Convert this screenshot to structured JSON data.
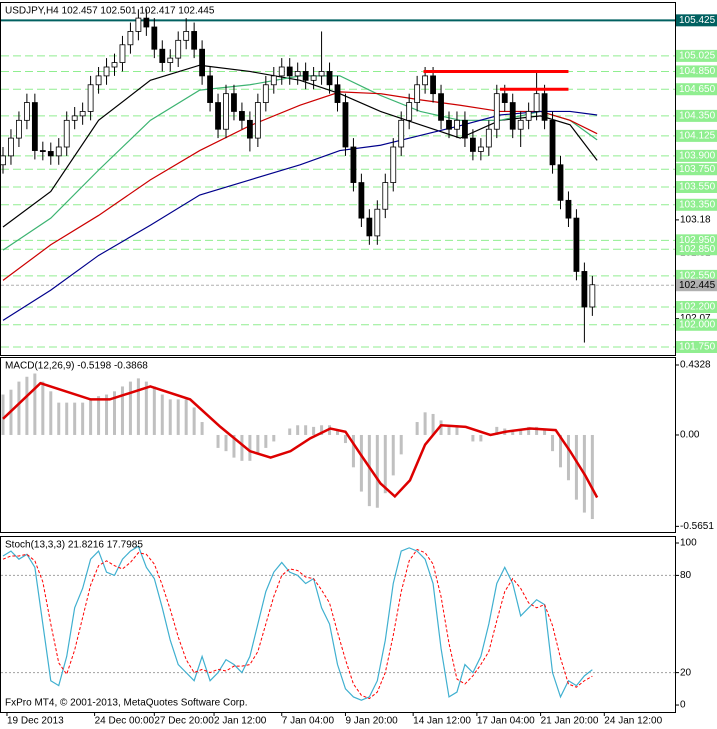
{
  "chart_data": [
    {
      "type": "candlestick",
      "title": "USDJPY,H4 102.457 102.501 102.417 102.445",
      "xlim": [
        0,
        84
      ],
      "ylim": [
        101.66,
        105.62
      ],
      "yticks": [
        103.18,
        102.81,
        102.07
      ],
      "up_color": "#ffffff",
      "down_color": "#000000",
      "open": [
        103.8,
        103.9,
        104.1,
        104.3,
        104.5,
        103.96,
        103.95,
        103.9,
        104.0,
        104.3,
        104.35,
        104.4,
        104.7,
        104.8,
        104.9,
        104.95,
        105.15,
        105.3,
        105.45,
        105.35,
        105.1,
        104.95,
        105.0,
        105.2,
        105.3,
        105.1,
        104.8,
        104.5,
        104.2,
        104.6,
        104.4,
        104.3,
        104.1,
        104.5,
        104.7,
        104.8,
        104.9,
        104.8,
        104.85,
        104.75,
        104.8,
        104.85,
        104.7,
        104.5,
        104.0,
        103.6,
        103.2,
        103.0,
        103.3,
        103.6,
        104.0,
        104.3,
        104.5,
        104.7,
        104.8,
        104.6,
        104.3,
        104.2,
        104.3,
        104.1,
        103.95,
        104.0,
        104.2,
        104.6,
        104.5,
        104.2,
        104.3,
        104.4,
        104.6,
        104.3,
        103.8,
        103.4,
        103.2,
        102.6,
        102.2
      ],
      "high": [
        104.0,
        104.2,
        104.4,
        104.6,
        104.6,
        104.06,
        104.05,
        104.1,
        104.4,
        104.45,
        104.5,
        104.8,
        104.9,
        105.0,
        105.05,
        105.25,
        105.4,
        105.55,
        105.55,
        105.45,
        105.2,
        105.1,
        105.3,
        105.45,
        105.4,
        105.2,
        104.9,
        104.6,
        104.7,
        104.7,
        104.5,
        104.4,
        104.6,
        104.8,
        104.9,
        105.0,
        105.0,
        104.95,
        104.95,
        104.9,
        105.3,
        104.95,
        104.8,
        104.6,
        104.1,
        103.7,
        103.3,
        103.4,
        103.7,
        104.1,
        104.4,
        104.6,
        104.8,
        104.9,
        104.9,
        104.7,
        104.4,
        104.4,
        104.4,
        104.2,
        104.1,
        104.3,
        104.7,
        104.7,
        104.6,
        104.4,
        104.5,
        104.85,
        104.7,
        104.4,
        103.9,
        103.5,
        103.3,
        102.7,
        102.55
      ],
      "low": [
        103.7,
        103.8,
        104.0,
        104.2,
        103.86,
        103.85,
        103.8,
        103.8,
        103.9,
        104.2,
        104.25,
        104.3,
        104.6,
        104.7,
        104.8,
        104.85,
        105.05,
        105.2,
        105.25,
        105.0,
        104.85,
        104.85,
        104.9,
        105.1,
        105.0,
        104.7,
        104.4,
        104.1,
        104.1,
        104.3,
        104.2,
        103.95,
        104.0,
        104.4,
        104.6,
        104.7,
        104.7,
        104.7,
        104.65,
        104.65,
        104.7,
        104.6,
        104.4,
        103.9,
        103.5,
        103.1,
        102.9,
        102.9,
        103.2,
        103.5,
        103.9,
        104.2,
        104.4,
        104.6,
        104.5,
        104.2,
        104.1,
        104.1,
        104.0,
        103.85,
        103.85,
        103.9,
        104.1,
        104.4,
        104.1,
        104.0,
        104.2,
        104.3,
        104.2,
        103.7,
        103.3,
        103.1,
        102.5,
        101.8,
        102.1
      ],
      "close": [
        103.9,
        104.1,
        104.3,
        104.5,
        103.96,
        103.95,
        103.9,
        104.0,
        104.3,
        104.35,
        104.4,
        104.7,
        104.8,
        104.9,
        104.95,
        105.15,
        105.3,
        105.45,
        105.35,
        105.1,
        104.95,
        105.0,
        105.2,
        105.3,
        105.1,
        104.8,
        104.5,
        104.2,
        104.6,
        104.4,
        104.3,
        104.1,
        104.5,
        104.7,
        104.8,
        104.9,
        104.8,
        104.85,
        104.75,
        104.8,
        104.85,
        104.7,
        104.5,
        104.0,
        103.6,
        103.2,
        103.0,
        103.3,
        103.6,
        104.0,
        104.3,
        104.5,
        104.7,
        104.8,
        104.6,
        104.3,
        104.2,
        104.3,
        104.1,
        103.95,
        104.0,
        104.2,
        104.6,
        104.5,
        104.2,
        104.3,
        104.4,
        104.6,
        104.3,
        103.8,
        103.4,
        103.2,
        102.6,
        102.2,
        102.45
      ],
      "moving_averages": {
        "x": [
          0,
          6,
          12,
          18.5,
          24.7,
          31,
          37.3,
          42.3,
          47.4,
          52.4,
          57.4,
          62.4,
          67.5,
          71.2,
          74.6
        ],
        "series": [
          {
            "color": "#000000",
            "values": [
              103.1,
              103.5,
              104.3,
              104.75,
              104.92,
              104.85,
              104.75,
              104.6,
              104.4,
              104.25,
              104.1,
              104.3,
              104.35,
              104.25,
              103.85
            ]
          },
          {
            "color": "#3cb371",
            "values": [
              102.84,
              103.2,
              103.74,
              104.3,
              104.64,
              104.7,
              104.8,
              104.8,
              104.58,
              104.4,
              104.3,
              104.3,
              104.4,
              104.3,
              104.08
            ]
          },
          {
            "color": "#cc0000",
            "values": [
              102.5,
              102.9,
              103.23,
              103.63,
              103.96,
              104.24,
              104.47,
              104.62,
              104.6,
              104.53,
              104.47,
              104.4,
              104.4,
              104.3,
              104.15
            ]
          },
          {
            "color": "#00008b",
            "values": [
              102.05,
              102.39,
              102.78,
              103.12,
              103.46,
              103.63,
              103.8,
              103.96,
              104.02,
              104.13,
              104.24,
              104.36,
              104.4,
              104.4,
              104.36
            ]
          }
        ]
      },
      "levels": [
        105.025,
        {
          "value": 104.85,
          "label": "104.850"
        },
        {
          "value": 104.65,
          "label": "104.650"
        },
        {
          "value": 104.35,
          "label": "104.350"
        },
        104.125,
        {
          "value": 103.9,
          "label": "103.900"
        },
        {
          "value": 103.75,
          "label": "103.750"
        },
        {
          "value": 103.55,
          "label": "103.550"
        },
        {
          "value": 103.35,
          "label": "103.350"
        },
        {
          "value": 102.95,
          "label": "102.950"
        },
        {
          "value": 102.85,
          "label": "102.850"
        },
        {
          "value": 102.55,
          "label": "102.550"
        },
        {
          "value": 102.2,
          "label": "102.200"
        },
        {
          "value": 102.0,
          "label": "102.000"
        },
        {
          "value": 101.75,
          "label": "101.750"
        }
      ],
      "level_color": "#90ee90",
      "highlight_level": {
        "value": 105.425,
        "color": "#006060"
      },
      "current_price": {
        "value": 102.445,
        "color": "#b0b0b0"
      },
      "resistance_lines": {
        "color": "#ff0000",
        "lines": [
          {
            "value": 104.85,
            "x": [
              52.8,
              71
            ]
          },
          {
            "value": 104.65,
            "x": [
              62.4,
              71
            ]
          }
        ]
      }
    },
    {
      "type": "bar",
      "title": "MACD(12,26,9) -0.5198 -0.3868",
      "xlim": [
        0,
        84
      ],
      "ylim": [
        -0.6,
        0.476
      ],
      "yticks": [
        0.4328,
        {
          "value": 0,
          "label": "0.00"
        },
        -0.5651
      ],
      "color": "#c0c0c0",
      "values": [
        0.25,
        0.28,
        0.33,
        0.36,
        0.38,
        0.33,
        0.27,
        0.2,
        0.2,
        0.2,
        0.2,
        0.22,
        0.24,
        0.25,
        0.27,
        0.3,
        0.33,
        0.35,
        0.33,
        0.3,
        0.25,
        0.22,
        0.22,
        0.22,
        0.17,
        0.08,
        0.0,
        -0.08,
        -0.1,
        -0.14,
        -0.16,
        -0.16,
        -0.12,
        -0.08,
        -0.04,
        0.0,
        0.04,
        0.06,
        0.06,
        0.05,
        0.06,
        0.06,
        0.03,
        -0.05,
        -0.2,
        -0.35,
        -0.44,
        -0.45,
        -0.36,
        -0.25,
        -0.12,
        0.0,
        0.08,
        0.14,
        0.13,
        0.09,
        0.06,
        0.06,
        0.0,
        -0.04,
        -0.04,
        0.0,
        0.05,
        0.04,
        0.02,
        0.03,
        0.05,
        0.05,
        0.03,
        -0.1,
        -0.2,
        -0.28,
        -0.4,
        -0.48,
        -0.5198
      ],
      "signal": {
        "color": "#dd0000",
        "x": [
          0,
          4.7,
          11,
          13.4,
          18.5,
          23.5,
          27.3,
          31,
          33.6,
          36.1,
          38.6,
          41.1,
          43,
          44.9,
          47.4,
          49.2,
          51.1,
          53,
          55,
          58.1,
          61.2,
          63.1,
          66.2,
          69.4,
          71.2,
          73.1,
          74.6
        ],
        "values": [
          0.1,
          0.32,
          0.22,
          0.22,
          0.3,
          0.22,
          0.05,
          -0.1,
          -0.14,
          -0.1,
          -0.02,
          0.04,
          0.02,
          -0.12,
          -0.3,
          -0.38,
          -0.28,
          -0.06,
          0.06,
          0.05,
          0.0,
          0.02,
          0.04,
          0.03,
          -0.1,
          -0.25,
          -0.3868
        ]
      }
    },
    {
      "type": "line",
      "title": "Stoch(13,3,3) 21.8216 17.7985",
      "xlim": [
        0,
        84
      ],
      "ylim": [
        -4.3,
        103.7
      ],
      "yticks": [
        100,
        80,
        20,
        0
      ],
      "levels": [
        80,
        20
      ],
      "series": [
        {
          "color": "#40b0d0",
          "values": [
            92,
            95,
            90,
            93,
            85,
            50,
            15,
            12,
            30,
            60,
            72,
            90,
            95,
            82,
            80,
            90,
            95,
            98,
            85,
            78,
            60,
            40,
            25,
            20,
            15,
            30,
            15,
            20,
            28,
            25,
            20,
            30,
            50,
            70,
            82,
            88,
            82,
            80,
            75,
            78,
            60,
            50,
            25,
            10,
            5,
            3,
            5,
            15,
            40,
            75,
            95,
            97,
            95,
            90,
            75,
            35,
            5,
            8,
            25,
            20,
            30,
            50,
            75,
            85,
            75,
            55,
            60,
            65,
            62,
            20,
            5,
            15,
            12,
            18,
            21.8216
          ]
        },
        {
          "color": "#ff0000",
          "dash": true,
          "values": [
            90,
            92,
            92,
            93,
            89,
            76,
            50,
            26,
            19,
            34,
            54,
            74,
            86,
            89,
            86,
            84,
            88,
            94,
            93,
            87,
            74,
            59,
            42,
            28,
            20,
            22,
            20,
            22,
            21,
            24,
            24,
            25,
            33,
            50,
            67,
            80,
            84,
            83,
            79,
            78,
            71,
            63,
            45,
            28,
            13,
            6,
            4,
            8,
            20,
            43,
            70,
            89,
            96,
            94,
            87,
            67,
            38,
            16,
            13,
            18,
            25,
            33,
            52,
            70,
            78,
            72,
            63,
            60,
            62,
            49,
            29,
            13,
            11,
            15,
            17.7985
          ]
        }
      ],
      "xticks": [
        {
          "value": 0.5,
          "label": "19 Dec 2013"
        },
        {
          "value": 11.5,
          "label": "24 Dec 00:00"
        },
        {
          "value": 19,
          "label": "27 Dec 20:00"
        },
        {
          "value": 26.5,
          "label": "2 Jan 12:00"
        },
        {
          "value": 35,
          "label": "7 Jan 04:00"
        },
        {
          "value": 43,
          "label": "9 Jan 20:00"
        },
        {
          "value": 51.5,
          "label": "14 Jan 12:00"
        },
        {
          "value": 59.5,
          "label": "17 Jan 04:00"
        },
        {
          "value": 67.5,
          "label": "21 Jan 20:00"
        },
        {
          "value": 75.5,
          "label": "24 Jan 12:00"
        }
      ],
      "annotation": "FxPro MT4, © 2001-2013, MetaQuotes Software Corp."
    }
  ]
}
